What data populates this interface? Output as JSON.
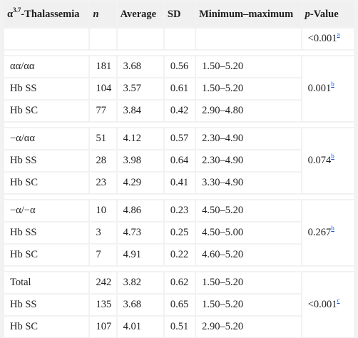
{
  "header": {
    "col1_prefix": "α",
    "col1_sup": "3.7",
    "col1_suffix": "-Thalassemia",
    "col2": "n",
    "col3": "Average",
    "col4": "SD",
    "col5": "Minimum–maximum",
    "col6_italic": "p",
    "col6_rest": "-Value"
  },
  "overall_p": {
    "value": "<0.001",
    "note": "a"
  },
  "groups": [
    {
      "rows": [
        {
          "name": "αα/αα",
          "n": "181",
          "average": "3.68",
          "sd": "0.56",
          "range": "1.50–5.20"
        },
        {
          "name": "Hb SS",
          "n": "104",
          "average": "3.57",
          "sd": "0.61",
          "range": "1.50–5.20"
        },
        {
          "name": "Hb SC",
          "n": "77",
          "average": "3.84",
          "sd": "0.42",
          "range": "2.90–4.80"
        }
      ],
      "p": "0.001",
      "note": "b"
    },
    {
      "rows": [
        {
          "name": "−α/αα",
          "n": "51",
          "average": "4.12",
          "sd": "0.57",
          "range": "2.30–4.90"
        },
        {
          "name": "Hb SS",
          "n": "28",
          "average": "3.98",
          "sd": "0.64",
          "range": "2.30–4.90"
        },
        {
          "name": "Hb SC",
          "n": "23",
          "average": "4.29",
          "sd": "0.41",
          "range": "3.30–4.90"
        }
      ],
      "p": "0.074",
      "note": "b"
    },
    {
      "rows": [
        {
          "name": "−α/−α",
          "n": "10",
          "average": "4.86",
          "sd": "0.23",
          "range": "4.50–5.20"
        },
        {
          "name": "Hb SS",
          "n": "3",
          "average": "4.73",
          "sd": "0.25",
          "range": "4.50–5.00"
        },
        {
          "name": "Hb SC",
          "n": "7",
          "average": "4.91",
          "sd": "0.22",
          "range": "4.60–5.20"
        }
      ],
      "p": "0.267",
      "note": "b"
    },
    {
      "rows": [
        {
          "name": "Total",
          "n": "242",
          "average": "3.82",
          "sd": "0.62",
          "range": "1.50–5.20"
        },
        {
          "name": "Hb SS",
          "n": "135",
          "average": "3.68",
          "sd": "0.65",
          "range": "1.50–5.20"
        },
        {
          "name": "Hb SC",
          "n": "107",
          "average": "4.01",
          "sd": "0.51",
          "range": "2.90–5.20"
        }
      ],
      "p": "<0.001",
      "note": "c"
    }
  ]
}
